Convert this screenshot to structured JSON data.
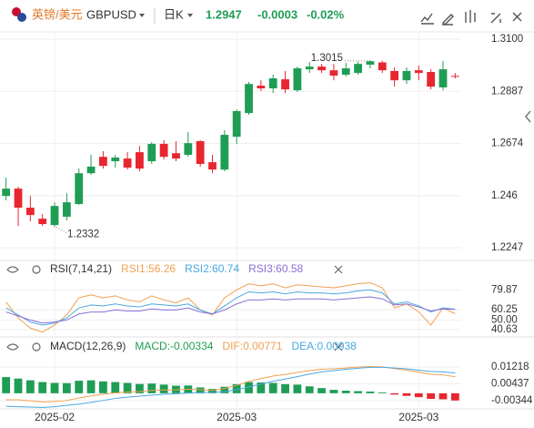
{
  "header": {
    "name": "英镑/美元",
    "symbol": "GBPUSD",
    "period": "日K",
    "price": "1.2947",
    "change": "-0.0003",
    "change_pct": "-0.02%"
  },
  "chart_data": [
    {
      "type": "candlestick",
      "categories": [
        null,
        null,
        null,
        null,
        "2025-02",
        null,
        null,
        null,
        null,
        null,
        null,
        null,
        null,
        null,
        null,
        null,
        null,
        null,
        null,
        "2025-03",
        null,
        null,
        null,
        null,
        null,
        null,
        null,
        null,
        null,
        null,
        null,
        null,
        null,
        null,
        "2025-03",
        null,
        null,
        null
      ],
      "open": [
        1.2459,
        1.2489,
        1.2411,
        1.2366,
        1.234,
        1.2374,
        1.2426,
        1.2552,
        1.2619,
        1.2601,
        1.2612,
        1.2638,
        1.2601,
        1.2672,
        1.2634,
        1.2627,
        1.2683,
        1.2597,
        1.2567,
        1.2701,
        1.2798,
        1.291,
        1.2899,
        1.2936,
        1.2891,
        1.2977,
        1.2988,
        1.2973,
        1.2955,
        1.2962,
        1.2996,
        1.3005,
        1.297,
        1.2932,
        1.2973,
        1.2966,
        1.2903,
        1.295
      ],
      "high": [
        1.2534,
        1.2497,
        1.2459,
        1.2385,
        1.2433,
        1.247,
        1.2571,
        1.2627,
        1.2642,
        1.2627,
        1.2638,
        1.2664,
        1.2679,
        1.2687,
        1.2683,
        1.272,
        1.2687,
        1.2627,
        1.2728,
        1.2813,
        1.2925,
        1.2932,
        1.2955,
        1.297,
        1.2988,
        1.3007,
        1.2999,
        1.2999,
        1.3003,
        1.3008,
        1.3015,
        1.3012,
        1.2985,
        1.2985,
        1.2992,
        1.2977,
        1.3011,
        1.2962
      ],
      "low": [
        1.2441,
        1.2336,
        1.2355,
        1.2336,
        1.2332,
        1.2359,
        1.2422,
        1.2545,
        1.2571,
        1.2575,
        1.2567,
        1.256,
        1.259,
        1.2608,
        1.2601,
        1.2619,
        1.2579,
        1.2552,
        1.256,
        1.2672,
        1.2791,
        1.2888,
        1.288,
        1.288,
        1.2884,
        1.2962,
        1.2962,
        1.2932,
        1.2947,
        1.2955,
        1.2981,
        1.2962,
        1.2906,
        1.2917,
        1.2932,
        1.2895,
        1.2891,
        1.294
      ],
      "close": [
        1.2489,
        1.2411,
        1.2381,
        1.2344,
        1.2418,
        1.2433,
        1.2552,
        1.2579,
        1.2582,
        1.2616,
        1.2575,
        1.2571,
        1.2672,
        1.2619,
        1.2612,
        1.2675,
        1.259,
        1.2567,
        1.2709,
        1.2806,
        1.2917,
        1.2899,
        1.294,
        1.2895,
        1.2981,
        1.2988,
        1.2973,
        1.2951,
        1.2981,
        1.2999,
        1.301,
        1.2973,
        1.2932,
        1.297,
        1.2962,
        1.2906,
        1.2977,
        1.2947
      ],
      "up_color": "#1f9d55",
      "down_color": "#e8262f",
      "high_label": "1.3015",
      "low_label": "1.2332",
      "ylim": [
        1.2199,
        1.313
      ],
      "yticks": [
        {
          "value": 1.31,
          "label": "1.3100"
        },
        1.2887,
        1.2674,
        1.246,
        1.2247
      ],
      "grid": true
    },
    {
      "type": "line",
      "title": "RSI(7,14,21)",
      "series": [
        {
          "label": "RSI1:56.26",
          "color": "#f0a050",
          "values": [
            68,
            52,
            42,
            38,
            45,
            55,
            72,
            75,
            72,
            74,
            70,
            68,
            74,
            70,
            67,
            72,
            60,
            55,
            72,
            80,
            86,
            84,
            86,
            82,
            85,
            84,
            83,
            82,
            84,
            86,
            87,
            82,
            62,
            66,
            58,
            45,
            62,
            56.26
          ]
        },
        {
          "label": "RSI2:60.74",
          "color": "#4aa8e0",
          "values": [
            62,
            55,
            48,
            45,
            47,
            52,
            62,
            65,
            64,
            66,
            64,
            63,
            66,
            65,
            64,
            66,
            60,
            56,
            64,
            72,
            78,
            77,
            78,
            76,
            78,
            77,
            77,
            76,
            77,
            79,
            80,
            77,
            66,
            68,
            64,
            58,
            62,
            60.74
          ]
        },
        {
          "label": "RSI3:60.58",
          "color": "#8a6fd8",
          "values": [
            58,
            54,
            50,
            47,
            48,
            50,
            56,
            58,
            58,
            60,
            59,
            59,
            61,
            60,
            60,
            62,
            58,
            56,
            60,
            66,
            70,
            70,
            71,
            70,
            71,
            71,
            71,
            70,
            71,
            72,
            73,
            71,
            65,
            66,
            63,
            59,
            61,
            60.58
          ]
        }
      ],
      "ylim": [
        35,
        92
      ],
      "yticks": [
        79.87,
        60.25,
        {
          "value": 50,
          "label": "50.00"
        },
        40.63
      ],
      "grid": true
    },
    {
      "type": "combo",
      "title": "MACD(12,26,9)",
      "series": [
        {
          "label": "MACD:-0.00334",
          "type": "bar",
          "color": "#1f9d55",
          "negative_color": "#e8262f",
          "values": [
            0.0075,
            0.0068,
            0.006,
            0.0052,
            0.0048,
            0.0047,
            0.0058,
            0.006,
            0.0055,
            0.0052,
            0.0048,
            0.0043,
            0.0045,
            0.004,
            0.0035,
            0.0036,
            0.0027,
            0.002,
            0.003,
            0.0042,
            0.0052,
            0.005,
            0.0048,
            0.0042,
            0.004,
            0.0032,
            0.0024,
            0.0016,
            0.0012,
            0.001,
            0.0008,
            0.0004,
            -0.0006,
            -0.0012,
            -0.0018,
            -0.0026,
            -0.0028,
            -0.00334
          ]
        },
        {
          "label": "DIF:0.00771",
          "type": "line",
          "color": "#f0a050",
          "values": [
            -0.003,
            -0.003,
            -0.0035,
            -0.004,
            -0.0038,
            -0.0033,
            -0.0022,
            -0.0012,
            -0.0005,
            0.0002,
            0.0006,
            0.0008,
            0.0013,
            0.0015,
            0.0016,
            0.0019,
            0.0017,
            0.0013,
            0.0022,
            0.0037,
            0.0055,
            0.0068,
            0.008,
            0.0087,
            0.0097,
            0.0105,
            0.0111,
            0.0113,
            0.0117,
            0.0121,
            0.0124,
            0.0122,
            0.0114,
            0.0107,
            0.0098,
            0.0088,
            0.0085,
            0.00771
          ]
        },
        {
          "label": "DEA:0.00938",
          "type": "line",
          "color": "#4aa8e0",
          "values": [
            -0.006,
            -0.0062,
            -0.0064,
            -0.0066,
            -0.0062,
            -0.0056,
            -0.005,
            -0.0042,
            -0.0033,
            -0.0024,
            -0.0018,
            -0.0013,
            -0.0009,
            -0.0005,
            -0.0002,
            0.0001,
            0.0003,
            0.0004,
            0.0007,
            0.0016,
            0.0029,
            0.0043,
            0.0056,
            0.0066,
            0.0077,
            0.0089,
            0.0099,
            0.0105,
            0.0111,
            0.0116,
            0.012,
            0.012,
            0.0117,
            0.0113,
            0.0107,
            0.0101,
            0.0099,
            0.00938
          ]
        }
      ],
      "ylim": [
        -0.0068,
        0.0227
      ],
      "yticks": [
        0.01218,
        0.00437,
        -0.00344
      ],
      "grid": true
    }
  ]
}
